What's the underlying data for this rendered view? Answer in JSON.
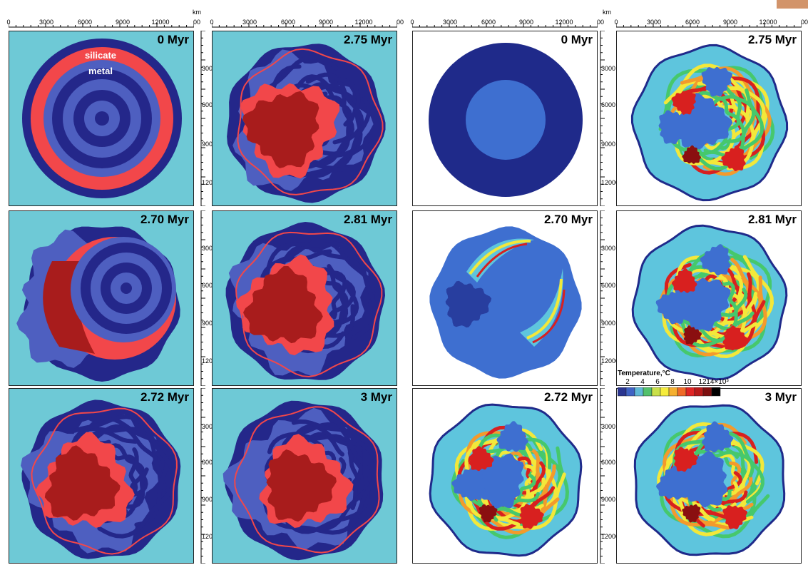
{
  "top_axis": {
    "ticks": [
      "0",
      "3000",
      "6000",
      "9000",
      "12000",
      "00"
    ],
    "unit": "km"
  },
  "side_axis": {
    "ticks": [
      "3000",
      "6000",
      "9000",
      "12000"
    ]
  },
  "materials": {
    "silicate": "silicate",
    "metal": "metal"
  },
  "composition_panels": [
    {
      "label": "0 Myr"
    },
    {
      "label": "2.75 Myr"
    },
    {
      "label": "2.70 Myr"
    },
    {
      "label": "2.81 Myr"
    },
    {
      "label": "2.72 Myr"
    },
    {
      "label": "3 Myr"
    }
  ],
  "temperature_panels": [
    {
      "label": "0 Myr"
    },
    {
      "label": "2.75 Myr"
    },
    {
      "label": "2.70 Myr"
    },
    {
      "label": "2.81 Myr"
    },
    {
      "label": "2.72 Myr"
    },
    {
      "label": "3 Myr"
    }
  ],
  "legend": {
    "title": "Temperature,°C",
    "ticks": [
      "2",
      "4",
      "6",
      "8",
      "10",
      "12",
      "14×10³"
    ],
    "colors": [
      "#2a3590",
      "#3f63c4",
      "#5fb8d6",
      "#52c06b",
      "#c9e04a",
      "#f6ec3c",
      "#f5b030",
      "#ef6a28",
      "#e02525",
      "#b81a1a",
      "#7d0f0f",
      "#000000"
    ]
  },
  "colors": {
    "background_cyan": "#6ec9d6",
    "silicate_dark": "#24278a",
    "silicate_light": "#4e5fc0",
    "metal_red": "#f2474a",
    "metal_dark": "#a81c1c",
    "temp_deep": "#1f2a8a",
    "temp_mid": "#3e6fd0",
    "temp_cyan": "#5ec5dd",
    "temp_green": "#46c86c",
    "temp_yellow": "#f3e83a",
    "temp_orange": "#f39a2c",
    "temp_red": "#d8201f",
    "temp_darkred": "#8a0f10"
  }
}
